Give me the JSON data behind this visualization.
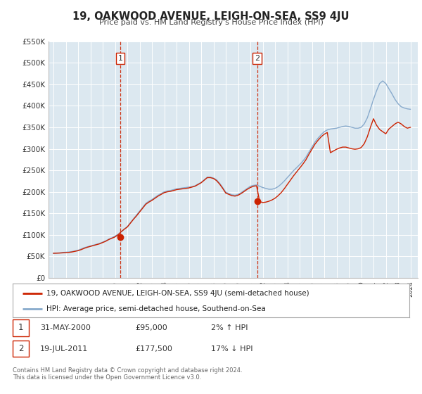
{
  "title": "19, OAKWOOD AVENUE, LEIGH-ON-SEA, SS9 4JU",
  "subtitle": "Price paid vs. HM Land Registry's House Price Index (HPI)",
  "legend_line1": "19, OAKWOOD AVENUE, LEIGH-ON-SEA, SS9 4JU (semi-detached house)",
  "legend_line2": "HPI: Average price, semi-detached house, Southend-on-Sea",
  "red_color": "#cc2200",
  "blue_color": "#88aacc",
  "marker1_x": 2000.42,
  "marker1_price": 95000,
  "marker2_x": 2011.55,
  "marker2_price": 177500,
  "footer_line1": "Contains HM Land Registry data © Crown copyright and database right 2024.",
  "footer_line2": "This data is licensed under the Open Government Licence v3.0.",
  "table_row1_date": "31-MAY-2000",
  "table_row1_price": "£95,000",
  "table_row1_hpi": "2% ↑ HPI",
  "table_row2_date": "19-JUL-2011",
  "table_row2_price": "£177,500",
  "table_row2_hpi": "17% ↓ HPI",
  "bg_color": "#ffffff",
  "plot_bg_color": "#dce8f0",
  "grid_color": "#ffffff",
  "dashed_color": "#cc2200",
  "hpi_years": [
    1995.0,
    1995.25,
    1995.5,
    1995.75,
    1996.0,
    1996.25,
    1996.5,
    1996.75,
    1997.0,
    1997.25,
    1997.5,
    1997.75,
    1998.0,
    1998.25,
    1998.5,
    1998.75,
    1999.0,
    1999.25,
    1999.5,
    1999.75,
    2000.0,
    2000.25,
    2000.5,
    2000.75,
    2001.0,
    2001.25,
    2001.5,
    2001.75,
    2002.0,
    2002.25,
    2002.5,
    2002.75,
    2003.0,
    2003.25,
    2003.5,
    2003.75,
    2004.0,
    2004.25,
    2004.5,
    2004.75,
    2005.0,
    2005.25,
    2005.5,
    2005.75,
    2006.0,
    2006.25,
    2006.5,
    2006.75,
    2007.0,
    2007.25,
    2007.5,
    2007.75,
    2008.0,
    2008.25,
    2008.5,
    2008.75,
    2009.0,
    2009.25,
    2009.5,
    2009.75,
    2010.0,
    2010.25,
    2010.5,
    2010.75,
    2011.0,
    2011.25,
    2011.5,
    2011.75,
    2012.0,
    2012.25,
    2012.5,
    2012.75,
    2013.0,
    2013.25,
    2013.5,
    2013.75,
    2014.0,
    2014.25,
    2014.5,
    2014.75,
    2015.0,
    2015.25,
    2015.5,
    2015.75,
    2016.0,
    2016.25,
    2016.5,
    2016.75,
    2017.0,
    2017.25,
    2017.5,
    2017.75,
    2018.0,
    2018.25,
    2018.5,
    2018.75,
    2019.0,
    2019.25,
    2019.5,
    2019.75,
    2020.0,
    2020.25,
    2020.5,
    2020.75,
    2021.0,
    2021.25,
    2021.5,
    2021.75,
    2022.0,
    2022.25,
    2022.5,
    2022.75,
    2023.0,
    2023.25,
    2023.5,
    2023.75,
    2024.0
  ],
  "hpi_values": [
    57000,
    57500,
    58000,
    59000,
    59500,
    60000,
    61000,
    62500,
    64000,
    67000,
    70000,
    72000,
    74000,
    76000,
    78000,
    80000,
    83000,
    86000,
    90000,
    93000,
    97000,
    101000,
    107000,
    113000,
    119000,
    128000,
    137000,
    146000,
    155000,
    164000,
    173000,
    178000,
    182000,
    187000,
    192000,
    196000,
    200000,
    202000,
    203000,
    205000,
    207000,
    208000,
    209000,
    210000,
    211000,
    212000,
    214000,
    218000,
    222000,
    228000,
    234000,
    234000,
    232000,
    228000,
    220000,
    210000,
    199000,
    196000,
    193000,
    192000,
    194000,
    198000,
    203000,
    208000,
    213000,
    215000,
    216000,
    213000,
    210000,
    208000,
    206000,
    206000,
    208000,
    212000,
    218000,
    225000,
    233000,
    241000,
    249000,
    256000,
    263000,
    271000,
    280000,
    292000,
    304000,
    316000,
    325000,
    333000,
    340000,
    344000,
    346000,
    347000,
    348000,
    350000,
    352000,
    353000,
    352000,
    350000,
    348000,
    348000,
    350000,
    358000,
    372000,
    393000,
    415000,
    435000,
    452000,
    458000,
    452000,
    440000,
    428000,
    415000,
    405000,
    398000,
    395000,
    393000,
    392000
  ],
  "red_years": [
    1995.0,
    1995.25,
    1995.5,
    1995.75,
    1996.0,
    1996.25,
    1996.5,
    1996.75,
    1997.0,
    1997.25,
    1997.5,
    1997.75,
    1998.0,
    1998.25,
    1998.5,
    1998.75,
    1999.0,
    1999.25,
    1999.5,
    1999.75,
    2000.0,
    2000.25,
    2000.5,
    2000.75,
    2001.0,
    2001.25,
    2001.5,
    2001.75,
    2002.0,
    2002.25,
    2002.5,
    2002.75,
    2003.0,
    2003.25,
    2003.5,
    2003.75,
    2004.0,
    2004.25,
    2004.5,
    2004.75,
    2005.0,
    2005.25,
    2005.5,
    2005.75,
    2006.0,
    2006.25,
    2006.5,
    2006.75,
    2007.0,
    2007.25,
    2007.5,
    2007.75,
    2008.0,
    2008.25,
    2008.5,
    2008.75,
    2009.0,
    2009.25,
    2009.5,
    2009.75,
    2010.0,
    2010.25,
    2010.5,
    2010.75,
    2011.0,
    2011.25,
    2011.5,
    2011.75,
    2012.0,
    2012.25,
    2012.5,
    2012.75,
    2013.0,
    2013.25,
    2013.5,
    2013.75,
    2014.0,
    2014.25,
    2014.5,
    2014.75,
    2015.0,
    2015.25,
    2015.5,
    2015.75,
    2016.0,
    2016.25,
    2016.5,
    2016.75,
    2017.0,
    2017.25,
    2017.5,
    2017.75,
    2018.0,
    2018.25,
    2018.5,
    2018.75,
    2019.0,
    2019.25,
    2019.5,
    2019.75,
    2020.0,
    2020.25,
    2020.5,
    2020.75,
    2021.0,
    2021.25,
    2021.5,
    2021.75,
    2022.0,
    2022.25,
    2022.5,
    2022.75,
    2023.0,
    2023.25,
    2023.5,
    2023.75,
    2024.0
  ],
  "red_values": [
    57000,
    57200,
    57500,
    58000,
    58500,
    59000,
    60000,
    61500,
    63000,
    65500,
    68500,
    71000,
    73000,
    75000,
    77000,
    79000,
    82000,
    85000,
    89000,
    92000,
    95000,
    100000,
    107000,
    113000,
    118000,
    127000,
    136000,
    144000,
    153000,
    162000,
    171000,
    176000,
    180000,
    185000,
    190000,
    194000,
    198000,
    200000,
    201000,
    203000,
    205000,
    206000,
    207000,
    208000,
    209000,
    211000,
    213000,
    217000,
    221000,
    227000,
    233000,
    233000,
    231000,
    226000,
    218000,
    208000,
    197000,
    194000,
    191000,
    190000,
    192000,
    196000,
    201000,
    206000,
    210000,
    213000,
    214000,
    177500,
    175000,
    176000,
    178000,
    181000,
    185000,
    191000,
    198000,
    207000,
    217000,
    227000,
    237000,
    246000,
    255000,
    264000,
    274000,
    287000,
    299000,
    311000,
    320000,
    328000,
    334000,
    338000,
    291000,
    295000,
    299000,
    302000,
    304000,
    304000,
    302000,
    300000,
    299000,
    300000,
    303000,
    312000,
    328000,
    350000,
    370000,
    355000,
    345000,
    340000,
    335000,
    346000,
    352000,
    358000,
    362000,
    358000,
    352000,
    348000,
    350000
  ]
}
